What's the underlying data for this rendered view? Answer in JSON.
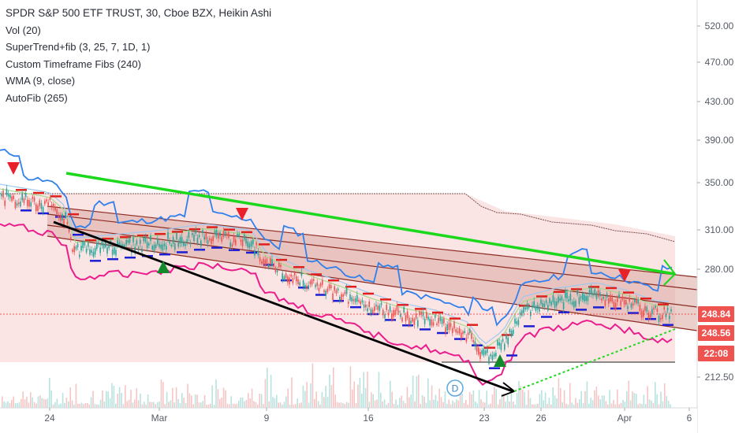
{
  "legend": {
    "title": "SPDR S&P 500 ETF TRUST, 30, Cboe BZX, Heikin Ashi",
    "indicators": [
      "Vol (20)",
      "SuperTrend+fib (3, 25, 7, 1D, 1)",
      "Custom Timeframe Fibs (240)",
      "WMA (9, close)",
      "AutoFib (265)"
    ]
  },
  "colors": {
    "up": "#26a69a",
    "down": "#ef5350",
    "fib_fill": "#f8c9c9",
    "trend_green": "#1cd81c",
    "trend_black": "#000000",
    "price_tag": "#ef5350",
    "time_tag": "#ef5350"
  },
  "chart_data": {
    "type": "candlestick",
    "title": "SPDR S&P 500 ETF TRUST, 30, Cboe BZX, Heikin Ashi",
    "y_tick_labels": [
      "520.00",
      "470.00",
      "430.00",
      "390.00",
      "350.00",
      "310.00",
      "280.00",
      "248.84",
      "248.56",
      "22:08",
      "212.50"
    ],
    "x_tick_labels": [
      "24",
      "Mar",
      "9",
      "16",
      "23",
      "26",
      "Apr",
      "6"
    ],
    "price_path": [
      {
        "x": "Feb 20",
        "y": 338
      },
      {
        "x": "Feb 24",
        "y": 331
      },
      {
        "x": "Feb 27",
        "y": 318
      },
      {
        "x": "Feb 28",
        "y": 294
      },
      {
        "x": "Mar 2",
        "y": 300
      },
      {
        "x": "Mar 5",
        "y": 305
      },
      {
        "x": "Mar 8",
        "y": 300
      },
      {
        "x": "Mar 9",
        "y": 283
      },
      {
        "x": "Mar 12",
        "y": 270
      },
      {
        "x": "Mar 14",
        "y": 263
      },
      {
        "x": "Mar 16",
        "y": 255
      },
      {
        "x": "Mar 18",
        "y": 248
      },
      {
        "x": "Mar 20",
        "y": 244
      },
      {
        "x": "Mar 22",
        "y": 237
      },
      {
        "x": "Mar 23",
        "y": 224
      },
      {
        "x": "Mar 24",
        "y": 232
      },
      {
        "x": "Mar 25",
        "y": 252
      },
      {
        "x": "Mar 27",
        "y": 258
      },
      {
        "x": "Mar 30",
        "y": 262
      },
      {
        "x": "Apr 1",
        "y": 257
      },
      {
        "x": "Apr 3",
        "y": 249
      }
    ],
    "series": [
      {
        "name": "SPDR S&P 500 ETF TRUST",
        "values": [
          338,
          331,
          318,
          294,
          300,
          305,
          300,
          283,
          270,
          263,
          255,
          248,
          244,
          237,
          224,
          232,
          252,
          258,
          262,
          257,
          249
        ]
      }
    ],
    "last_price": 248.84,
    "secondary_price": 248.56,
    "countdown": "22:08",
    "axis_ranges": {
      "y": [
        198,
        540
      ]
    },
    "grid": false,
    "legend_placement": "top-left",
    "annotations": [
      {
        "kind": "sell-signal",
        "x": "Feb 20"
      },
      {
        "kind": "buy-signal",
        "x": "Mar 2"
      },
      {
        "kind": "sell-signal",
        "x": "Mar 8"
      },
      {
        "kind": "buy-signal",
        "x": "Mar 24"
      },
      {
        "kind": "sell-signal",
        "x": "Apr 1"
      },
      {
        "kind": "dividend",
        "label": "D",
        "x": "Mar 20"
      }
    ]
  }
}
